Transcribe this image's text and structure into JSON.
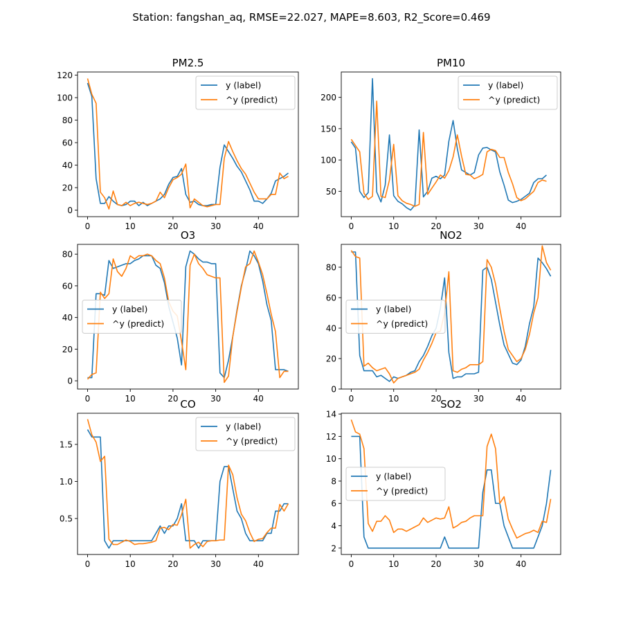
{
  "figure_title": "Station: fangshan_aq, RMSE=22.027, MAPE=8.603, R2_Score=0.469",
  "colors": {
    "label": "#1f77b4",
    "predict": "#ff7f0e"
  },
  "chart_data": [
    {
      "type": "line",
      "title": "PM2.5",
      "xlim": [
        -2.35,
        49.35
      ],
      "ylim": [
        -5.8,
        122.8
      ],
      "xticks": [
        0,
        10,
        20,
        30,
        40
      ],
      "yticks": [
        0,
        20,
        40,
        60,
        80,
        100,
        120
      ],
      "legend": "upper right",
      "series": [
        {
          "name": "y (label)",
          "values": [
            113,
            101,
            28,
            6,
            6,
            12,
            8,
            5,
            4,
            5,
            8,
            8,
            4,
            7,
            4,
            6,
            8,
            10,
            14,
            23,
            29,
            30,
            37,
            14,
            7,
            8,
            5,
            4,
            4,
            5,
            5,
            38,
            58,
            52,
            46,
            39,
            34,
            26,
            18,
            8,
            8,
            6,
            10,
            15,
            26,
            28,
            30,
            33
          ]
        },
        {
          "name": "^y (predict)",
          "values": [
            117,
            103,
            95,
            16,
            11,
            1,
            17,
            5,
            4,
            7,
            4,
            6,
            7,
            6,
            5,
            6,
            8,
            16,
            11,
            20,
            27,
            29,
            32,
            41,
            2,
            10,
            7,
            4,
            3,
            4,
            5,
            5,
            46,
            61,
            52,
            44,
            37,
            32,
            24,
            16,
            10,
            10,
            10,
            14,
            14,
            33,
            28,
            30
          ]
        }
      ]
    },
    {
      "type": "line",
      "title": "PM10",
      "xlim": [
        -2.35,
        49.35
      ],
      "ylim": [
        9.5,
        240.5
      ],
      "xticks": [
        0,
        10,
        20,
        30,
        40
      ],
      "yticks": [
        50,
        100,
        150,
        200
      ],
      "legend": "upper right",
      "series": [
        {
          "name": "y (label)",
          "values": [
            129,
            119,
            50,
            40,
            48,
            230,
            49,
            33,
            60,
            140,
            43,
            34,
            30,
            24,
            20,
            28,
            148,
            41,
            50,
            71,
            74,
            70,
            76,
            130,
            163,
            118,
            84,
            80,
            76,
            80,
            108,
            119,
            120,
            116,
            113,
            81,
            60,
            36,
            32,
            34,
            37,
            42,
            47,
            64,
            70,
            70,
            76
          ]
        },
        {
          "name": "^y (predict)",
          "values": [
            133,
            123,
            113,
            47,
            37,
            42,
            194,
            42,
            40,
            68,
            125,
            43,
            35,
            31,
            29,
            26,
            29,
            144,
            45,
            55,
            65,
            76,
            71,
            83,
            105,
            140,
            106,
            77,
            76,
            70,
            73,
            77,
            113,
            117,
            115,
            104,
            104,
            80,
            62,
            40,
            35,
            38,
            44,
            50,
            64,
            68,
            66
          ]
        }
      ]
    },
    {
      "type": "line",
      "title": "O3",
      "xlim": [
        -2.35,
        49.35
      ],
      "ylim": [
        -5.2,
        86.2
      ],
      "xticks": [
        0,
        10,
        20,
        30,
        40
      ],
      "yticks": [
        0,
        20,
        40,
        60,
        80
      ],
      "legend": "center left",
      "series": [
        {
          "name": "y (label)",
          "values": [
            2,
            2,
            55,
            55,
            54,
            76,
            71,
            72,
            73,
            74,
            74,
            76,
            77,
            79,
            79,
            79,
            73,
            71,
            62,
            47,
            37,
            27,
            10,
            72,
            82,
            80,
            77,
            75,
            75,
            74,
            74,
            5,
            2,
            13,
            28,
            45,
            60,
            70,
            82,
            79,
            74,
            63,
            48,
            38,
            7,
            7,
            7,
            6
          ]
        },
        {
          "name": "^y (predict)",
          "values": [
            1,
            4,
            5,
            56,
            52,
            55,
            77,
            69,
            66,
            71,
            79,
            77,
            79,
            79,
            80,
            79,
            76,
            74,
            65,
            50,
            44,
            41,
            25,
            7,
            73,
            80,
            74,
            71,
            67,
            66,
            65,
            65,
            -1,
            3,
            28,
            44,
            59,
            72,
            74,
            82,
            75,
            67,
            55,
            42,
            31,
            2,
            6,
            6
          ]
        }
      ]
    },
    {
      "type": "line",
      "title": "NO2",
      "xlim": [
        -2.35,
        49.35
      ],
      "ylim": [
        0,
        95.0
      ],
      "xticks": [
        0,
        10,
        20,
        30,
        40
      ],
      "yticks": [
        0,
        20,
        40,
        60,
        80
      ],
      "legend": "center left",
      "series": [
        {
          "name": "y (label)",
          "values": [
            90,
            90,
            22,
            12,
            12,
            12,
            8,
            9,
            7,
            5,
            8,
            7,
            8,
            9,
            11,
            12,
            18,
            22,
            28,
            35,
            40,
            53,
            73,
            24,
            7,
            8,
            8,
            10,
            10,
            10,
            11,
            78,
            80,
            72,
            57,
            42,
            29,
            23,
            17,
            16,
            19,
            28,
            43,
            54,
            86,
            83,
            79,
            74
          ]
        },
        {
          "name": "^y (predict)",
          "values": [
            91,
            87,
            86,
            15,
            17,
            14,
            12,
            13,
            14,
            10,
            4,
            7,
            8,
            9,
            10,
            11,
            13,
            19,
            24,
            30,
            37,
            38,
            50,
            77,
            12,
            11,
            13,
            14,
            16,
            16,
            16,
            18,
            85,
            80,
            69,
            53,
            38,
            26,
            22,
            18,
            20,
            26,
            36,
            50,
            60,
            94,
            83,
            78
          ]
        }
      ]
    },
    {
      "type": "line",
      "title": "CO",
      "xlim": [
        -2.35,
        49.35
      ],
      "ylim": [
        0.015,
        1.92
      ],
      "xticks": [
        0,
        10,
        20,
        30,
        40
      ],
      "yticks": [
        0.5,
        1.0,
        1.5
      ],
      "legend": "upper right",
      "series": [
        {
          "name": "y (label)",
          "values": [
            1.7,
            1.6,
            1.6,
            1.6,
            0.2,
            0.1,
            0.2,
            0.2,
            0.2,
            0.2,
            0.2,
            0.2,
            0.2,
            0.2,
            0.2,
            0.2,
            0.3,
            0.4,
            0.3,
            0.4,
            0.4,
            0.5,
            0.7,
            0.2,
            0.2,
            0.2,
            0.1,
            0.2,
            0.2,
            0.2,
            0.2,
            1.0,
            1.2,
            1.2,
            0.9,
            0.6,
            0.5,
            0.3,
            0.2,
            0.2,
            0.2,
            0.2,
            0.3,
            0.3,
            0.6,
            0.6,
            0.7,
            0.7
          ]
        },
        {
          "name": "^y (predict)",
          "values": [
            1.84,
            1.63,
            1.53,
            1.27,
            1.34,
            0.22,
            0.15,
            0.15,
            0.18,
            0.21,
            0.19,
            0.15,
            0.16,
            0.16,
            0.17,
            0.18,
            0.2,
            0.37,
            0.38,
            0.35,
            0.42,
            0.41,
            0.55,
            0.76,
            0.1,
            0.15,
            0.18,
            0.12,
            0.19,
            0.2,
            0.2,
            0.21,
            0.21,
            1.22,
            1.09,
            0.78,
            0.56,
            0.47,
            0.31,
            0.19,
            0.22,
            0.23,
            0.31,
            0.37,
            0.37,
            0.69,
            0.6,
            0.7
          ]
        }
      ]
    },
    {
      "type": "line",
      "title": "SO2",
      "xlim": [
        -2.35,
        49.35
      ],
      "ylim": [
        1.43,
        14.07
      ],
      "xticks": [
        0,
        10,
        20,
        30,
        40
      ],
      "yticks": [
        2,
        4,
        6,
        8,
        10,
        12,
        14
      ],
      "legend": "center left",
      "series": [
        {
          "name": "y (label)",
          "values": [
            12,
            12,
            12,
            3,
            2,
            2,
            2,
            2,
            2,
            2,
            2,
            2,
            2,
            2,
            2,
            2,
            2,
            2,
            2,
            2,
            2,
            2,
            3,
            2,
            2,
            2,
            2,
            2,
            2,
            2,
            2,
            7,
            9,
            9,
            6,
            6,
            4,
            3,
            2,
            2,
            2,
            2,
            2,
            2,
            3,
            4,
            6,
            9
          ]
        },
        {
          "name": "^y (predict)",
          "values": [
            13.5,
            12.4,
            12.2,
            10.9,
            4.2,
            3.5,
            4.4,
            4.4,
            4.9,
            4.5,
            3.4,
            3.7,
            3.7,
            3.5,
            3.7,
            3.9,
            4.1,
            4.7,
            4.3,
            4.5,
            4.7,
            4.6,
            4.7,
            5.7,
            3.8,
            4.0,
            4.3,
            4.4,
            4.7,
            4.9,
            4.9,
            4.9,
            11.1,
            12.2,
            10.9,
            6.0,
            6.6,
            4.6,
            3.7,
            2.9,
            3.1,
            3.3,
            3.4,
            3.6,
            3.4,
            4.4,
            4.3,
            6.4
          ]
        }
      ]
    }
  ]
}
